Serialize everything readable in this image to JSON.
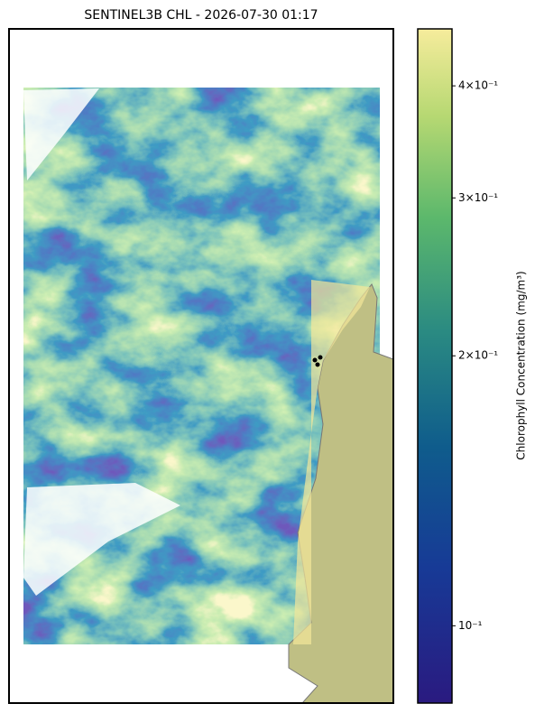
{
  "chart_data": {
    "type": "map",
    "title": "SENTINEL3B CHL - 2026-07-30 01:17",
    "colorbar": {
      "label": "Chlorophyll Concentration (mg/m³)",
      "scale": "log",
      "lim": [
        0.082,
        0.463
      ],
      "ticks": [
        {
          "value": 0.1,
          "label": "10⁻¹"
        },
        {
          "value": 0.2,
          "label": "2×10⁻¹"
        },
        {
          "value": 0.3,
          "label": "3×10⁻¹"
        },
        {
          "value": 0.4,
          "label": "4×10⁻¹"
        }
      ]
    }
  }
}
